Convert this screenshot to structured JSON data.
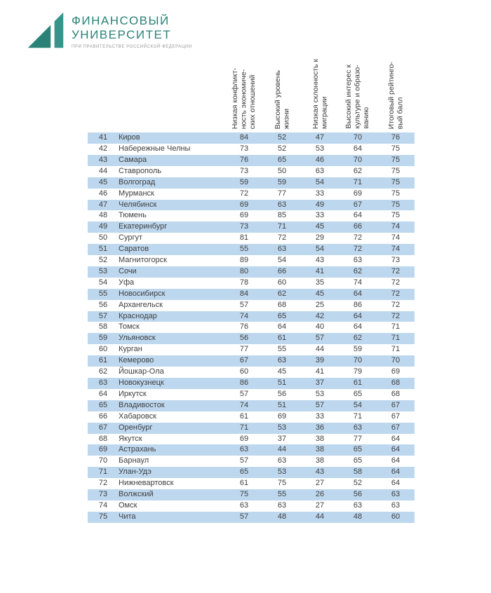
{
  "logo": {
    "line1": "ФИНАНСОВЫЙ",
    "line2": "УНИВЕРСИТЕТ",
    "subtitle": "ПРИ ПРАВИТЕЛЬСТВЕ РОССИЙСКОЙ ФЕДЕРАЦИИ"
  },
  "colors": {
    "brand_teal": "#2a8276",
    "row_highlight": "#bdd7ee"
  },
  "table": {
    "columns": [
      "Низкая конфликт-\nность экономиче-\nских отношений",
      "Высокий уровень\nжизни",
      "Низкая склонность к\nмиграции",
      "Высокий интерес к\nкультуре и образо-\nванию",
      "Итоговый рейтинго-\nвый балл"
    ],
    "rows": [
      {
        "rank": 41,
        "city": "Киров",
        "values": [
          84,
          52,
          47,
          70,
          76
        ]
      },
      {
        "rank": 42,
        "city": "Набережные Челны",
        "values": [
          73,
          52,
          53,
          64,
          75
        ]
      },
      {
        "rank": 43,
        "city": "Самара",
        "values": [
          76,
          65,
          46,
          70,
          75
        ]
      },
      {
        "rank": 44,
        "city": "Ставрополь",
        "values": [
          73,
          50,
          63,
          62,
          75
        ]
      },
      {
        "rank": 45,
        "city": "Волгоград",
        "values": [
          59,
          59,
          54,
          71,
          75
        ]
      },
      {
        "rank": 46,
        "city": "Мурманск",
        "values": [
          72,
          77,
          33,
          69,
          75
        ]
      },
      {
        "rank": 47,
        "city": "Челябинск",
        "values": [
          69,
          63,
          49,
          67,
          75
        ]
      },
      {
        "rank": 48,
        "city": "Тюмень",
        "values": [
          69,
          85,
          33,
          64,
          75
        ]
      },
      {
        "rank": 49,
        "city": "Екатеринбург",
        "values": [
          73,
          71,
          45,
          66,
          74
        ]
      },
      {
        "rank": 50,
        "city": "Сургут",
        "values": [
          81,
          72,
          29,
          72,
          74
        ]
      },
      {
        "rank": 51,
        "city": "Саратов",
        "values": [
          55,
          63,
          54,
          72,
          74
        ]
      },
      {
        "rank": 52,
        "city": "Магнитогорск",
        "values": [
          89,
          54,
          43,
          63,
          73
        ]
      },
      {
        "rank": 53,
        "city": "Сочи",
        "values": [
          80,
          66,
          41,
          62,
          72
        ]
      },
      {
        "rank": 54,
        "city": "Уфа",
        "values": [
          78,
          60,
          35,
          74,
          72
        ]
      },
      {
        "rank": 55,
        "city": "Новосибирск",
        "values": [
          84,
          62,
          45,
          64,
          72
        ]
      },
      {
        "rank": 56,
        "city": "Архангельск",
        "values": [
          57,
          68,
          25,
          86,
          72
        ]
      },
      {
        "rank": 57,
        "city": "Краснодар",
        "values": [
          74,
          65,
          42,
          64,
          72
        ]
      },
      {
        "rank": 58,
        "city": "Томск",
        "values": [
          76,
          64,
          40,
          64,
          71
        ]
      },
      {
        "rank": 59,
        "city": "Ульяновск",
        "values": [
          56,
          61,
          57,
          62,
          71
        ]
      },
      {
        "rank": 60,
        "city": "Курган",
        "values": [
          77,
          55,
          44,
          59,
          71
        ]
      },
      {
        "rank": 61,
        "city": "Кемерово",
        "values": [
          67,
          63,
          39,
          70,
          70
        ]
      },
      {
        "rank": 62,
        "city": "Йошкар-Ола",
        "values": [
          60,
          45,
          41,
          79,
          69
        ]
      },
      {
        "rank": 63,
        "city": "Новокузнецк",
        "values": [
          86,
          51,
          37,
          61,
          68
        ]
      },
      {
        "rank": 64,
        "city": "Иркутск",
        "values": [
          57,
          56,
          53,
          65,
          68
        ]
      },
      {
        "rank": 65,
        "city": "Владивосток",
        "values": [
          74,
          51,
          57,
          54,
          67
        ]
      },
      {
        "rank": 66,
        "city": "Хабаровск",
        "values": [
          61,
          69,
          33,
          71,
          67
        ]
      },
      {
        "rank": 67,
        "city": "Оренбург",
        "values": [
          71,
          53,
          36,
          63,
          67
        ]
      },
      {
        "rank": 68,
        "city": "Якутск",
        "values": [
          69,
          37,
          38,
          77,
          64
        ]
      },
      {
        "rank": 69,
        "city": "Астрахань",
        "values": [
          63,
          44,
          38,
          65,
          64
        ]
      },
      {
        "rank": 70,
        "city": "Барнаул",
        "values": [
          57,
          63,
          38,
          65,
          64
        ]
      },
      {
        "rank": 71,
        "city": "Улан-Удэ",
        "values": [
          65,
          53,
          43,
          58,
          64
        ]
      },
      {
        "rank": 72,
        "city": "Нижневартовск",
        "values": [
          61,
          75,
          27,
          52,
          64
        ]
      },
      {
        "rank": 73,
        "city": "Волжский",
        "values": [
          75,
          55,
          26,
          56,
          63
        ]
      },
      {
        "rank": 74,
        "city": "Омск",
        "values": [
          63,
          63,
          27,
          63,
          63
        ]
      },
      {
        "rank": 75,
        "city": "Чита",
        "values": [
          57,
          48,
          44,
          48,
          60
        ]
      }
    ]
  }
}
